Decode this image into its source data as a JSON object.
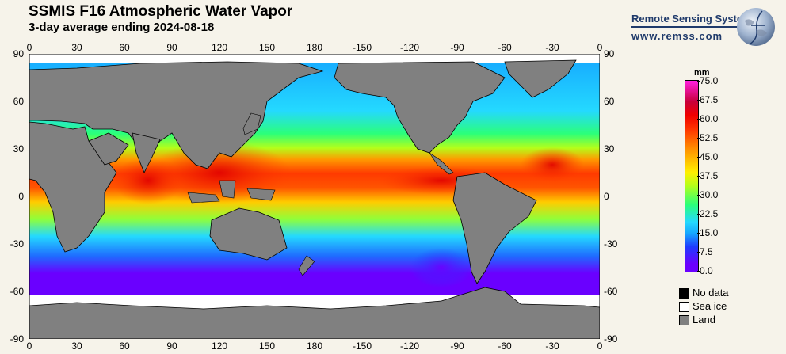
{
  "header": {
    "title": "SSMIS F16 Atmospheric Water Vapor",
    "subtitle": "3-day average ending 2024-08-18"
  },
  "brand": {
    "name": "Remote Sensing Systems",
    "url": "www.remss.com"
  },
  "axes": {
    "lon_ticks": [
      "0",
      "30",
      "60",
      "90",
      "120",
      "150",
      "180",
      "-150",
      "-120",
      "-90",
      "-60",
      "-30",
      "0"
    ],
    "lat_ticks": [
      "90",
      "60",
      "30",
      "0",
      "-30",
      "-60",
      "-90"
    ]
  },
  "colorbar": {
    "unit": "mm",
    "labels": [
      "75.0",
      "67.5",
      "60.0",
      "52.5",
      "45.0",
      "37.5",
      "30.0",
      "22.5",
      "15.0",
      "7.5",
      "0.0"
    ],
    "range": [
      0,
      75
    ],
    "colors": [
      "#6a00ff",
      "#1f3bff",
      "#16a6ff",
      "#2bff7a",
      "#fff000",
      "#ff9a00",
      "#ff3a00",
      "#f00000",
      "#ff20e0"
    ]
  },
  "legend": [
    {
      "label": "No data",
      "color": "#000000"
    },
    {
      "label": "Sea ice",
      "color": "#ffffff"
    },
    {
      "label": "Land",
      "color": "#808080"
    }
  ]
}
